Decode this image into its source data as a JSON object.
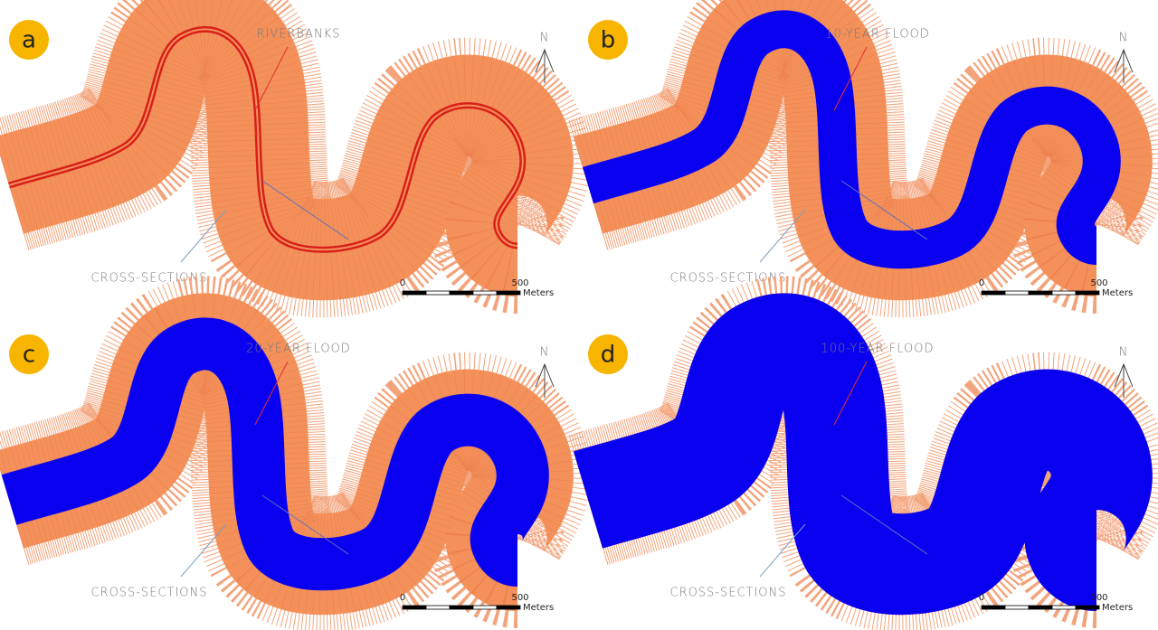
{
  "panels": [
    {
      "label": "a",
      "annotation": "RIVERBANKS",
      "cross_sections": "CROSS-SECTIONS",
      "north": "N",
      "scale": {
        "start": 0,
        "end": 500,
        "unit": "Meters"
      }
    },
    {
      "label": "b",
      "annotation": "10-YEAR FLOOD",
      "cross_sections": "CROSS-SECTIONS",
      "north": "N",
      "scale": {
        "start": 0,
        "end": 500,
        "unit": "Meters"
      }
    },
    {
      "label": "c",
      "annotation": "20-YEAR FLOOD",
      "cross_sections": "CROSS-SECTIONS",
      "north": "N",
      "scale": {
        "start": 0,
        "end": 500,
        "unit": "Meters"
      }
    },
    {
      "label": "d",
      "annotation": "100-YEAR FLOOD",
      "cross_sections": "CROSS-SECTIONS",
      "north": "N",
      "scale": {
        "start": 0,
        "end": 500,
        "unit": "Meters"
      }
    }
  ]
}
